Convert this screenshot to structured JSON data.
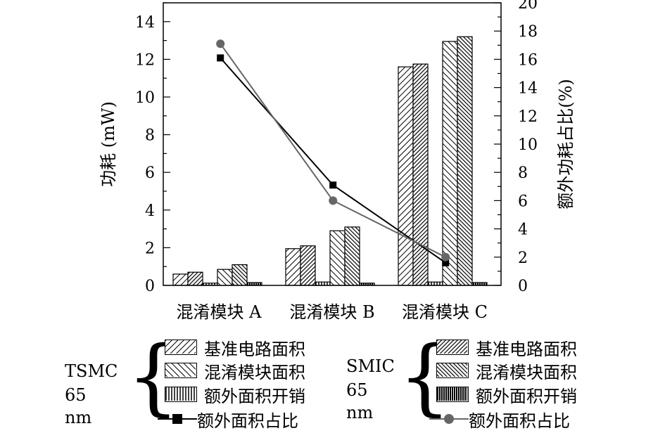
{
  "chart_data": {
    "type": "bar",
    "categories": [
      "混淆模块  A",
      "混淆模块  B",
      "混淆模块  C"
    ],
    "ylabel": "功耗 (mW)",
    "y2label": "额外功耗占比(%)",
    "ylim": [
      0,
      15
    ],
    "yticks": [
      0,
      2,
      4,
      6,
      8,
      10,
      12,
      14
    ],
    "y2lim": [
      0,
      20
    ],
    "y2ticks": [
      0,
      2,
      4,
      6,
      8,
      10,
      12,
      14,
      16,
      18,
      20
    ],
    "grid": false,
    "bar_series": [
      {
        "group": "TSMC 65 nm",
        "name": "基准电路面积",
        "values": [
          0.6,
          1.95,
          11.6
        ]
      },
      {
        "group": "SMIC 65 nm",
        "name": "基准电路面积",
        "values": [
          0.7,
          2.1,
          11.75
        ]
      },
      {
        "group": "TSMC 65 nm",
        "name": "额外面积开销",
        "values": [
          0.12,
          0.18,
          0.18
        ]
      },
      {
        "group": "TSMC 65 nm",
        "name": "混淆模块面积",
        "values": [
          0.85,
          2.9,
          12.95
        ]
      },
      {
        "group": "SMIC 65 nm",
        "name": "混淆模块面积",
        "values": [
          1.1,
          3.1,
          13.2
        ]
      },
      {
        "group": "SMIC 65 nm",
        "name": "额外面积开销",
        "values": [
          0.15,
          0.12,
          0.15
        ]
      }
    ],
    "line_series": [
      {
        "group": "TSMC 65 nm",
        "name": "额外面积占比",
        "axis": "right",
        "values": [
          16.1,
          7.1,
          1.6
        ],
        "color": "#000000",
        "marker": "square"
      },
      {
        "group": "SMIC 65 nm",
        "name": "额外面积占比",
        "axis": "right",
        "values": [
          17.1,
          6.0,
          2.0
        ],
        "color": "#666666",
        "marker": "circle"
      }
    ]
  },
  "legend": {
    "tsmc": {
      "name_line1": "TSMC",
      "name_line2": "65 nm",
      "items": [
        "基准电路面积",
        "混淆模块面积",
        "额外面积开销",
        "额外面积占比"
      ]
    },
    "smic": {
      "name_line1": "SMIC",
      "name_line2": "65 nm",
      "items": [
        "基准电路面积",
        "混淆模块面积",
        "额外面积开销",
        "额外面积占比"
      ]
    }
  },
  "colors": {
    "line_tsmc": "#000000",
    "line_smic": "#666666"
  }
}
